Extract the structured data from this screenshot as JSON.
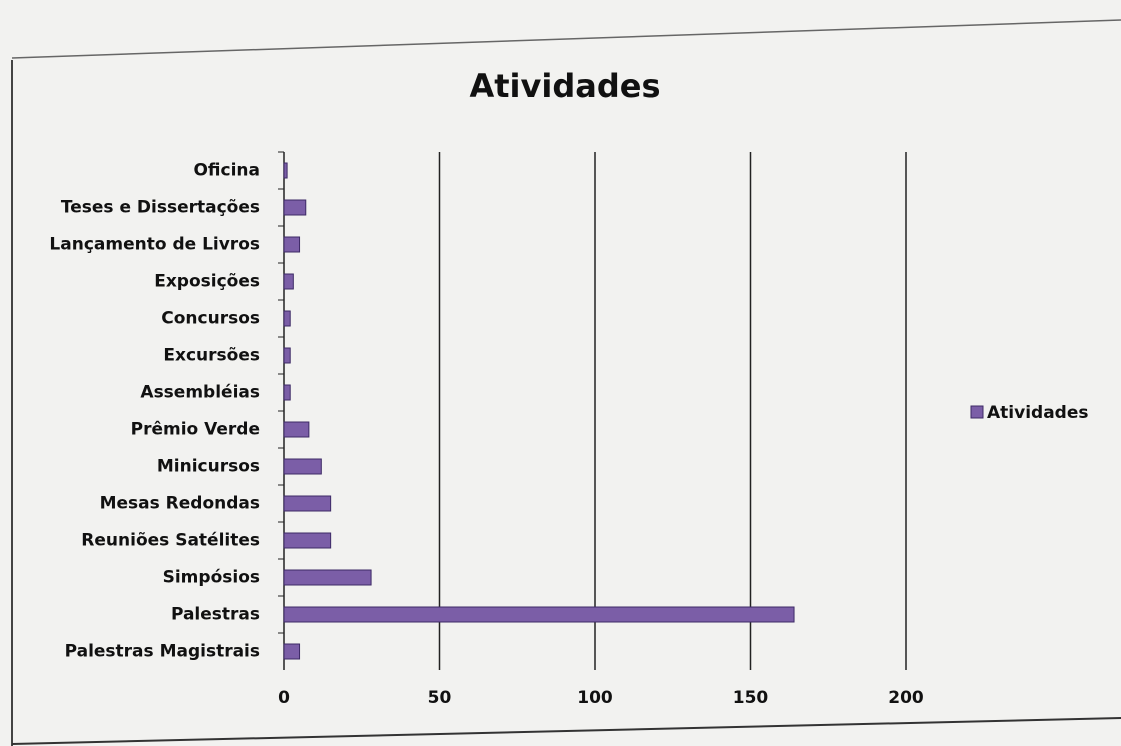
{
  "chart_data": {
    "type": "bar",
    "title": "Atividades",
    "categories": [
      "Oficina",
      "Teses e Dissertações",
      "Lançamento de Livros",
      "Exposições",
      "Concursos",
      "Excursões",
      "Assembléias",
      "Prêmio Verde",
      "Minicursos",
      "Mesas Redondas",
      "Reuniões Satélites",
      "Simpósios",
      "Palestras",
      "Palestras Magistrais"
    ],
    "series": [
      {
        "name": "Atividades",
        "color": "#7b5ea7",
        "values": [
          1,
          7,
          5,
          3,
          2,
          2,
          2,
          8,
          12,
          15,
          15,
          28,
          164,
          5
        ]
      }
    ],
    "xlim": [
      0,
      200
    ],
    "xticks": [
      0,
      50,
      100,
      150,
      200
    ],
    "grid": true,
    "orientation": "horizontal",
    "legend": "right"
  }
}
